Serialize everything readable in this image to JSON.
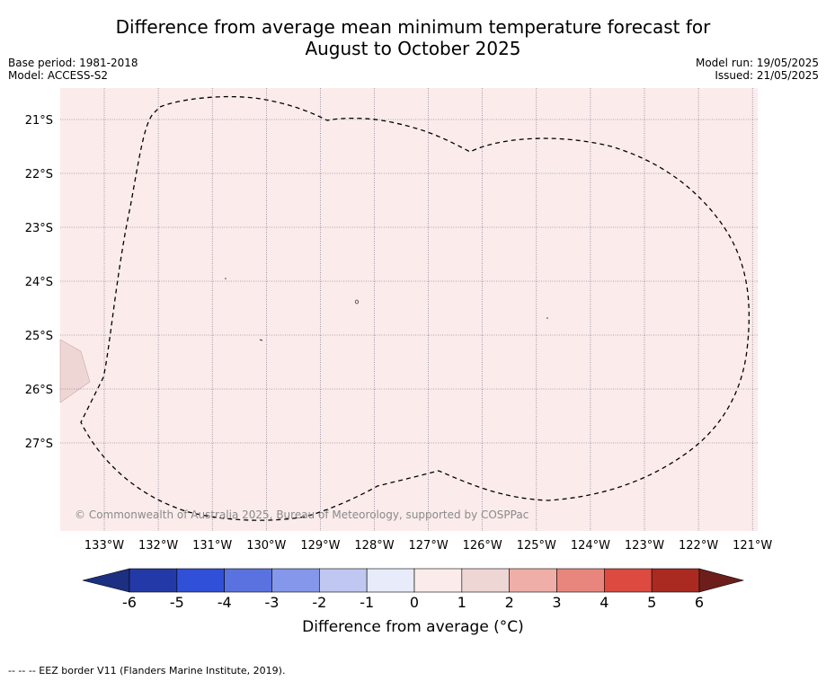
{
  "header": {
    "title_line1": "Difference from average mean minimum temperature forecast for",
    "title_line2": "August to October 2025",
    "base_period": "Base period: 1981-2018",
    "model": "Model: ACCESS-S2",
    "model_run": "Model run: 19/05/2025",
    "issued": "Issued: 21/05/2025"
  },
  "map": {
    "background_color": "#fbeceb",
    "anomaly_patch_color": "#eed6d5",
    "lat_labels": [
      "21°S",
      "22°S",
      "23°S",
      "24°S",
      "25°S",
      "26°S",
      "27°S"
    ],
    "lon_labels": [
      "133°W",
      "132°W",
      "131°W",
      "130°W",
      "129°W",
      "128°W",
      "127°W",
      "126°W",
      "125°W",
      "124°W",
      "123°W",
      "122°W",
      "121°W"
    ],
    "gridlines": true,
    "copyright": "© Commonwealth of Australia 2025, Bureau of Meteorology, supported by COSPPac",
    "eez_border_style": "dashed"
  },
  "colorbar": {
    "label": "Difference from average (°C)",
    "tick_labels": [
      "-6",
      "-5",
      "-4",
      "-3",
      "-2",
      "-1",
      "0",
      "1",
      "2",
      "3",
      "4",
      "5",
      "6"
    ],
    "low_extend_color": "#1c2f80",
    "high_extend_color": "#6e1e1a",
    "colors": [
      "#2439a8",
      "#3050d8",
      "#5a72e0",
      "#8497ea",
      "#c0c8f2",
      "#e8ebfa",
      "#fbeceb",
      "#eed6d5",
      "#f0aea8",
      "#e8857d",
      "#dc4a40",
      "#aa2a22"
    ]
  },
  "footer": {
    "legend_text": "--  --  -- EEZ border V11 (Flanders Marine Institute, 2019)."
  }
}
